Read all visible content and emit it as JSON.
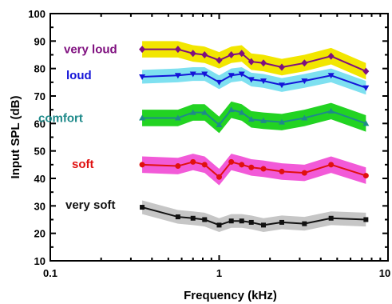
{
  "chart_data": {
    "type": "line",
    "xlabel": "Frequency (kHz)",
    "ylabel": "Input SPL (dB)",
    "xscale": "log",
    "xlim": [
      0.1,
      10
    ],
    "ylim": [
      10,
      100
    ],
    "x_ticks": [
      0.1,
      1,
      10
    ],
    "x_tick_labels": [
      "0.1",
      "1",
      "10"
    ],
    "y_ticks": [
      10,
      20,
      30,
      40,
      50,
      60,
      70,
      80,
      90,
      100
    ],
    "y_tick_labels": [
      "10",
      "20",
      "30",
      "40",
      "50",
      "60",
      "70",
      "80",
      "90",
      "100"
    ],
    "grid": false,
    "legend": "inline labels at left of each series",
    "x": [
      0.35,
      0.57,
      0.7,
      0.82,
      1.0,
      1.18,
      1.36,
      1.55,
      1.83,
      2.35,
      3.2,
      4.6,
      7.4
    ],
    "series": [
      {
        "name": "very loud",
        "color": "#7f0f7f",
        "band_color": "#f2e600",
        "marker": "diamond",
        "values": [
          87,
          87,
          85.5,
          85,
          83,
          85,
          85.5,
          82.5,
          82,
          80.5,
          82,
          84.5,
          79
        ],
        "band": 3
      },
      {
        "name": "loud",
        "color": "#1414d8",
        "band_color": "#7ee0f0",
        "marker": "triangle-down",
        "values": [
          77,
          77.5,
          78,
          78,
          75,
          77.5,
          78,
          76,
          75.5,
          74,
          75.5,
          77.5,
          73
        ],
        "band": 2.5
      },
      {
        "name": "comfort",
        "color": "#1e8a8a",
        "band_color": "#22d322",
        "marker": "triangle-up",
        "values": [
          62,
          62,
          64,
          64,
          59.5,
          65,
          64,
          61.5,
          61,
          60.5,
          62,
          64.5,
          60
        ],
        "band": 3
      },
      {
        "name": "soft",
        "color": "#e01010",
        "band_color": "#f25ad8",
        "marker": "circle",
        "values": [
          45,
          44.5,
          46,
          45,
          40.5,
          46,
          45,
          44,
          43.5,
          42.5,
          42,
          45,
          41
        ],
        "band": 3
      },
      {
        "name": "very soft",
        "color": "#111111",
        "band_color": "#c6c6c6",
        "marker": "square",
        "values": [
          29.5,
          26,
          25.5,
          25,
          23,
          24.5,
          24.5,
          24,
          23,
          24,
          23.5,
          25.5,
          25
        ],
        "band": 2.5
      }
    ]
  }
}
